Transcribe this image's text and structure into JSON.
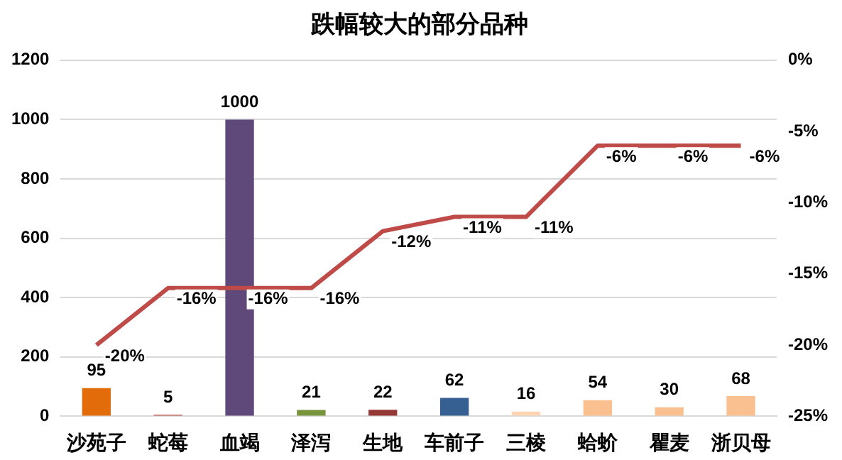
{
  "chart_data": {
    "type": "bar",
    "title": "跌幅较大的部分品种",
    "categories": [
      "沙苑子",
      "蛇莓",
      "血竭",
      "泽泻",
      "生地",
      "车前子",
      "三棱",
      "蛤蚧",
      "瞿麦",
      "浙贝母"
    ],
    "series": [
      {
        "colors": [
          "#e36c0a",
          "#c0504d",
          "#5f497a",
          "#77933c",
          "#953735",
          "#376092",
          "#fcd5b5",
          "#fac090",
          "#fac090",
          "#fac090"
        ],
        "values": [
          95,
          5,
          1000,
          21,
          22,
          62,
          16,
          54,
          30,
          68
        ],
        "value_labels": [
          "95",
          "5",
          "1000",
          "21",
          "22",
          "62",
          "16",
          "54",
          "30",
          "68"
        ]
      },
      {
        "type": "line",
        "axis": "y2",
        "color": "#be4b48",
        "values": [
          -20,
          -16,
          -16,
          -16,
          -12,
          -11,
          -11,
          -6,
          -6,
          -6
        ],
        "value_labels": [
          "-20%",
          "-16%",
          "-16%",
          "-16%",
          "-12%",
          "-11%",
          "-11%",
          "-6%",
          "-6%",
          "-6%"
        ]
      }
    ],
    "ylim": [
      0,
      1200
    ],
    "yticks": [
      0,
      200,
      400,
      600,
      800,
      1000,
      1200
    ],
    "y2lim": [
      -25,
      0
    ],
    "y2ticks": [
      {
        "value": -25,
        "label": "-25%"
      },
      {
        "value": -20,
        "label": "-20%"
      },
      {
        "value": -15,
        "label": "-15%"
      },
      {
        "value": -10,
        "label": "-10%"
      },
      {
        "value": -5,
        "label": "-5%"
      },
      {
        "value": 0,
        "label": "0%"
      }
    ],
    "grid": "y",
    "legend": false,
    "marker": "none"
  }
}
